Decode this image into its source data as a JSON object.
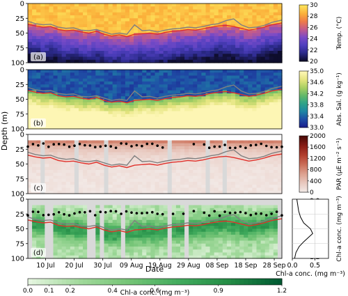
{
  "chart_data": {
    "type": "heatmap",
    "xlabel": "Date",
    "ylabel": "Depth (m)",
    "x_ticks": [
      "10 Jul",
      "20 Jul",
      "30 Jul",
      "09 Aug",
      "19 Aug",
      "29 Aug",
      "08 Sep",
      "18 Sep",
      "28 Sep"
    ],
    "y_ticks": [
      0,
      25,
      50,
      75,
      100
    ],
    "ylim": [
      100,
      0
    ],
    "line_series": [
      {
        "color": "#e0302a",
        "x_fraction": [
          0,
          0.03,
          0.06,
          0.09,
          0.12,
          0.15,
          0.18,
          0.21,
          0.24,
          0.27,
          0.3,
          0.33,
          0.36,
          0.39,
          0.42,
          0.45,
          0.48,
          0.51,
          0.54,
          0.57,
          0.6,
          0.63,
          0.66,
          0.69,
          0.72,
          0.75,
          0.78,
          0.81,
          0.84,
          0.87,
          0.9,
          0.93,
          0.96,
          1.0
        ],
        "depth_m": [
          35,
          38,
          40,
          39,
          44,
          46,
          45,
          48,
          50,
          47,
          52,
          55,
          53,
          56,
          52,
          51,
          50,
          52,
          49,
          47,
          46,
          44,
          45,
          43,
          40,
          38,
          37,
          39,
          42,
          45,
          43,
          40,
          36,
          33
        ]
      },
      {
        "color": "#808080",
        "x_fraction": [
          0,
          0.03,
          0.06,
          0.09,
          0.12,
          0.15,
          0.18,
          0.21,
          0.24,
          0.27,
          0.3,
          0.33,
          0.36,
          0.39,
          0.42,
          0.45,
          0.48,
          0.51,
          0.54,
          0.57,
          0.6,
          0.63,
          0.66,
          0.69,
          0.72,
          0.75,
          0.78,
          0.81,
          0.84,
          0.87,
          0.9,
          0.93,
          0.96,
          1.0
        ],
        "depth_m": [
          30,
          34,
          36,
          35,
          40,
          42,
          41,
          45,
          46,
          44,
          48,
          52,
          50,
          52,
          36,
          46,
          45,
          48,
          45,
          43,
          42,
          40,
          41,
          39,
          36,
          34,
          29,
          26,
          36,
          41,
          40,
          37,
          32,
          28
        ]
      }
    ],
    "panels": [
      {
        "label": "(a)",
        "colorbar": {
          "label": "Temp. (°C)",
          "ticks": [
            "30",
            "28",
            "26",
            "24",
            "22",
            "20"
          ],
          "range": [
            20,
            30
          ],
          "colors": [
            "#0e0d2c",
            "#2b2a8a",
            "#4f3fbf",
            "#7a4bc7",
            "#c15a8e",
            "#ee7a4a",
            "#fbb03a",
            "#fde25a"
          ]
        }
      },
      {
        "label": "(b)",
        "colorbar": {
          "label": "Abs. Sal. (g kg⁻¹)",
          "ticks": [
            "35.0",
            "34.6",
            "34.2",
            "33.8",
            "33.4",
            "33.0"
          ],
          "range": [
            33.0,
            35.0
          ],
          "colors": [
            "#1b1f8e",
            "#1f4ea6",
            "#1f86a4",
            "#2fa389",
            "#62b86a",
            "#a8cf63",
            "#e4e47e",
            "#fdf6b4"
          ]
        }
      },
      {
        "label": "(c)",
        "colorbar": {
          "label": "PAR (μE m⁻² s⁻¹)",
          "ticks": [
            "2000",
            "1600",
            "1200",
            "800",
            "400",
            "0"
          ],
          "range": [
            0,
            2000
          ],
          "colors": [
            "#f2e9e6",
            "#e8c7bd",
            "#dca08e",
            "#cb6d57",
            "#b23f2e",
            "#8a1e16",
            "#4d0b08"
          ]
        }
      },
      {
        "label": "(d)",
        "colorbar": {
          "label": "Chl-a conc. (mg m⁻³)",
          "ticks": [
            "0.0",
            "0.1",
            "0.2",
            "0.4",
            "0.6",
            "0.9",
            "1.2"
          ],
          "range": [
            0,
            1.2
          ],
          "colors": [
            "#e5f5e0",
            "#a1d99b",
            "#74c476",
            "#41ab5d",
            "#238b45",
            "#005a32"
          ]
        }
      }
    ],
    "profile": {
      "xlabel": "Chl-a conc. (mg m⁻³)",
      "x_ticks": [
        "0.0",
        "0.5"
      ],
      "xlim": [
        0,
        0.8
      ],
      "points": [
        [
          0.1,
          0
        ],
        [
          0.12,
          10
        ],
        [
          0.14,
          20
        ],
        [
          0.18,
          30
        ],
        [
          0.25,
          40
        ],
        [
          0.4,
          50
        ],
        [
          0.45,
          58
        ],
        [
          0.35,
          65
        ],
        [
          0.25,
          72
        ],
        [
          0.15,
          80
        ],
        [
          0.08,
          90
        ],
        [
          0.05,
          100
        ]
      ]
    }
  }
}
